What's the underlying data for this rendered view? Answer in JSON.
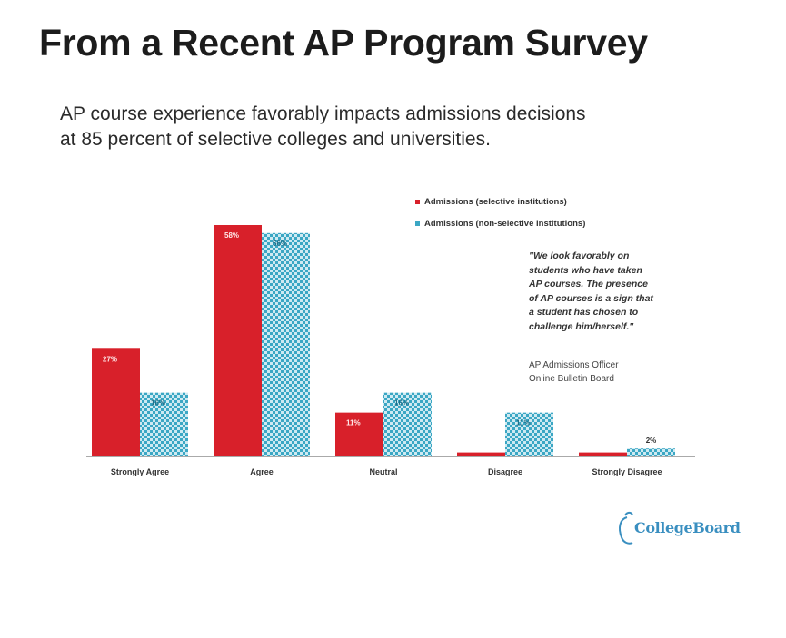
{
  "slide": {
    "title": "From a Recent AP Program Survey",
    "subtitle_lines": [
      "AP course experience favorably impacts admissions decisions",
      "at 85 percent of selective colleges and universities."
    ]
  },
  "quote": {
    "lines": [
      "\"We look favorably on",
      "students who have taken",
      "AP courses. The presence",
      "of AP courses is a sign that",
      "a student has chosen to",
      "challenge him/herself.\""
    ],
    "attribution_lines": [
      "AP Admissions Officer",
      "Online Bulletin Board"
    ]
  },
  "logo": {
    "text": "CollegeBoard"
  },
  "colors": {
    "selective": "#d8202a",
    "non_selective": "#3ba7c4",
    "non_selective_light": "#cfeaf2"
  },
  "chart_data": {
    "type": "bar",
    "categories": [
      "Strongly Agree",
      "Agree",
      "Neutral",
      "Disagree",
      "Strongly Disagree"
    ],
    "series": [
      {
        "name": "Admissions (selective institutions)",
        "values": [
          27,
          58,
          11,
          1,
          1
        ],
        "labels": [
          "27%",
          "58%",
          "11%",
          "",
          ""
        ]
      },
      {
        "name": "Admissions (non-selective institutions)",
        "values": [
          16,
          56,
          16,
          11,
          2
        ],
        "labels": [
          "16%",
          "56%",
          "16%",
          "11%",
          "2%"
        ]
      }
    ],
    "legend_position": "top-right",
    "grid": false,
    "ylim": [
      0,
      58
    ]
  }
}
